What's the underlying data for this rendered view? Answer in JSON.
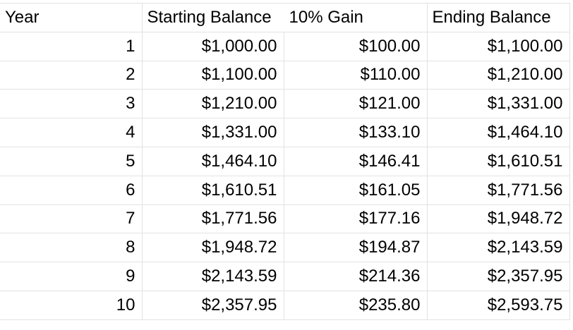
{
  "header": {
    "year": "Year",
    "starting_balance": "Starting Balance",
    "gain": "10% Gain",
    "ending_balance": "Ending Balance"
  },
  "rows": [
    {
      "year": "1",
      "start": "$1,000.00",
      "gain": "$100.00",
      "end": "$1,100.00"
    },
    {
      "year": "2",
      "start": "$1,100.00",
      "gain": "$110.00",
      "end": "$1,210.00"
    },
    {
      "year": "3",
      "start": "$1,210.00",
      "gain": "$121.00",
      "end": "$1,331.00"
    },
    {
      "year": "4",
      "start": "$1,331.00",
      "gain": "$133.10",
      "end": "$1,464.10"
    },
    {
      "year": "5",
      "start": "$1,464.10",
      "gain": "$146.41",
      "end": "$1,610.51"
    },
    {
      "year": "6",
      "start": "$1,610.51",
      "gain": "$161.05",
      "end": "$1,771.56"
    },
    {
      "year": "7",
      "start": "$1,771.56",
      "gain": "$177.16",
      "end": "$1,948.72"
    },
    {
      "year": "8",
      "start": "$1,948.72",
      "gain": "$194.87",
      "end": "$2,143.59"
    },
    {
      "year": "9",
      "start": "$2,143.59",
      "gain": "$214.36",
      "end": "$2,357.95"
    },
    {
      "year": "10",
      "start": "$2,357.95",
      "gain": "$235.80",
      "end": "$2,593.75"
    }
  ]
}
